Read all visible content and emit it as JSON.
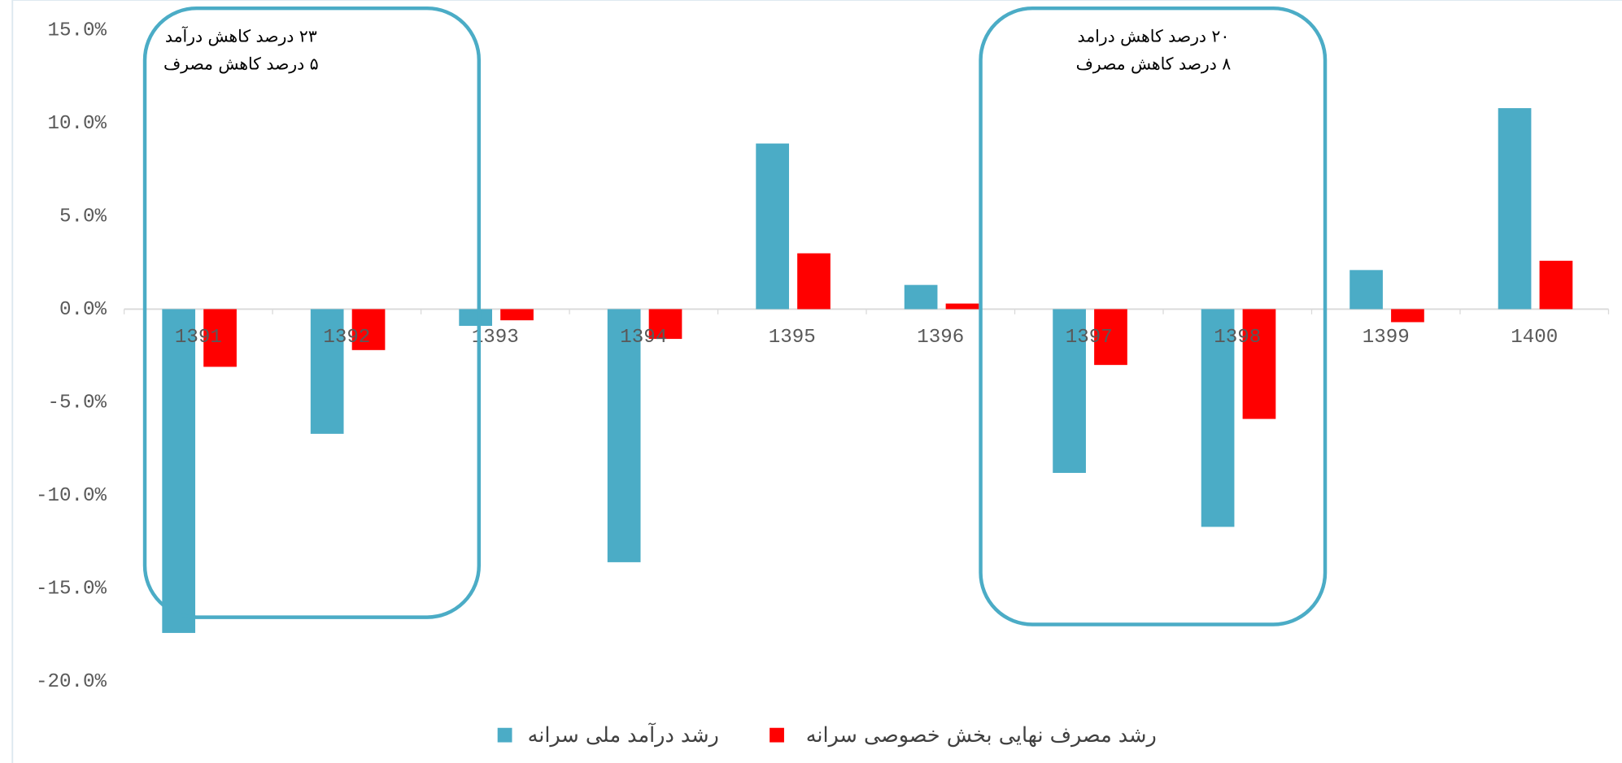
{
  "chart_data": {
    "type": "bar",
    "categories": [
      "1391",
      "1392",
      "1393",
      "1394",
      "1395",
      "1396",
      "1397",
      "1398",
      "1399",
      "1400"
    ],
    "series": [
      {
        "name": "رشد درآمد ملی سرانه",
        "color": "#4bacc6",
        "values": [
          -17.4,
          -6.7,
          -0.9,
          -13.6,
          8.9,
          1.3,
          -8.8,
          -11.7,
          2.1,
          10.8
        ]
      },
      {
        "name": "رشد مصرف نهایی بخش خصوصی سرانه",
        "color": "#ff0000",
        "values": [
          -3.1,
          -2.2,
          -0.6,
          -1.6,
          3.0,
          0.3,
          -3.0,
          -5.9,
          -0.7,
          2.6
        ]
      }
    ],
    "ylim": [
      -20,
      15
    ],
    "yticks": [
      {
        "value": -20,
        "label": "-20.0%"
      },
      {
        "value": -15,
        "label": "-15.0%"
      },
      {
        "value": -10,
        "label": "-10.0%"
      },
      {
        "value": -5,
        "label": "-5.0%"
      },
      {
        "value": 0,
        "label": "0.0%"
      },
      {
        "value": 5,
        "label": "5.0%"
      },
      {
        "value": 10,
        "label": "10.0%"
      },
      {
        "value": 15,
        "label": "15.0%"
      }
    ],
    "annotations": [
      {
        "lines": [
          "۲۳ درصد کاهش درآمد",
          "۵ درصد کاهش مصرف"
        ]
      },
      {
        "lines": [
          "۲۰ درصد کاهش درامد",
          "۸ درصد کاهش مصرف"
        ]
      }
    ],
    "legend": "bottom"
  }
}
